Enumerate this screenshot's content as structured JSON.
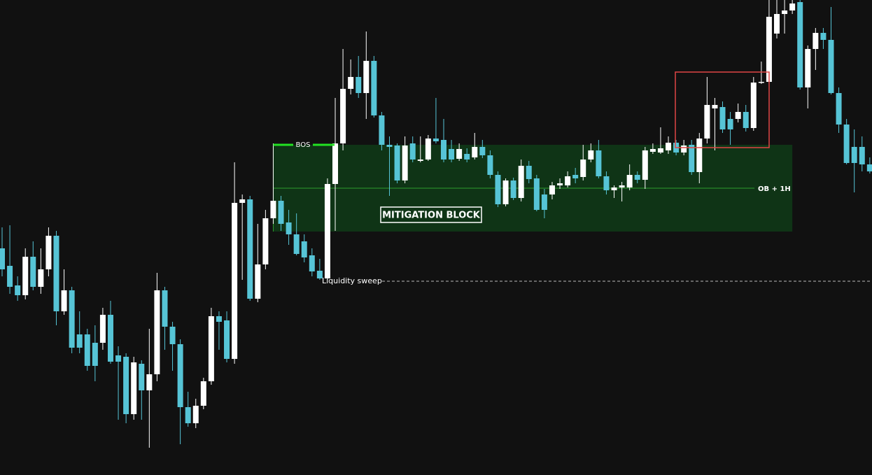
{
  "chart_data": {
    "type": "candlestick",
    "ylim": [
      0,
      680
    ],
    "up_color": "#ffffff",
    "down_color": "#56c4d6",
    "open": [
      325,
      300,
      272,
      258,
      313,
      270,
      295,
      343,
      235,
      265,
      202,
      202,
      190,
      190,
      230,
      172,
      170,
      88,
      160,
      122,
      145,
      265,
      213,
      188,
      98,
      75,
      100,
      135,
      228,
      222,
      167,
      390,
      395,
      253,
      302,
      368,
      393,
      362,
      345,
      335,
      315,
      293,
      282,
      417,
      475,
      553,
      570,
      547,
      593,
      515,
      473,
      472,
      422,
      475,
      450,
      452,
      482,
      480,
      467,
      453,
      460,
      455,
      470,
      458,
      430,
      388,
      422,
      397,
      443,
      425,
      402,
      402,
      415,
      415,
      430,
      427,
      452,
      465,
      428,
      408,
      412,
      412,
      430,
      423,
      463,
      462,
      465,
      476,
      462,
      473,
      434,
      482,
      525,
      527,
      510,
      510,
      520,
      497,
      562,
      563,
      632,
      660,
      665,
      677,
      555,
      610,
      633,
      623,
      547,
      502,
      470,
      470,
      445
    ],
    "high": [
      355,
      358,
      285,
      325,
      335,
      325,
      355,
      350,
      295,
      270,
      235,
      210,
      215,
      240,
      250,
      185,
      175,
      170,
      165,
      210,
      290,
      270,
      220,
      195,
      120,
      110,
      140,
      240,
      235,
      235,
      448,
      402,
      400,
      360,
      380,
      475,
      400,
      380,
      375,
      345,
      325,
      310,
      425,
      540,
      610,
      595,
      600,
      635,
      600,
      520,
      485,
      475,
      485,
      485,
      485,
      487,
      540,
      510,
      480,
      475,
      468,
      490,
      480,
      465,
      435,
      425,
      426,
      452,
      450,
      430,
      410,
      420,
      425,
      435,
      440,
      473,
      475,
      480,
      435,
      415,
      420,
      445,
      435,
      470,
      475,
      498,
      485,
      480,
      480,
      480,
      490,
      570,
      540,
      535,
      520,
      532,
      530,
      570,
      592,
      680,
      680,
      680,
      680,
      680,
      615,
      640,
      640,
      670,
      555,
      510,
      495,
      485,
      455
    ],
    "low": [
      285,
      260,
      250,
      252,
      265,
      260,
      285,
      215,
      230,
      175,
      175,
      150,
      135,
      180,
      160,
      80,
      75,
      80,
      80,
      40,
      135,
      180,
      150,
      45,
      70,
      68,
      95,
      130,
      180,
      162,
      160,
      280,
      250,
      248,
      295,
      360,
      350,
      330,
      315,
      305,
      285,
      280,
      280,
      350,
      465,
      545,
      540,
      510,
      512,
      465,
      400,
      418,
      418,
      448,
      448,
      450,
      475,
      448,
      448,
      450,
      448,
      452,
      454,
      425,
      384,
      385,
      394,
      392,
      418,
      378,
      368,
      395,
      410,
      412,
      418,
      422,
      448,
      425,
      402,
      397,
      392,
      408,
      418,
      410,
      460,
      460,
      460,
      458,
      458,
      430,
      418,
      475,
      465,
      490,
      473,
      505,
      492,
      493,
      560,
      560,
      625,
      632,
      660,
      552,
      525,
      580,
      610,
      545,
      490,
      445,
      405,
      435,
      432
    ],
    "close": [
      295,
      270,
      258,
      313,
      270,
      295,
      343,
      235,
      265,
      183,
      183,
      157,
      157,
      230,
      163,
      163,
      88,
      162,
      122,
      145,
      265,
      213,
      188,
      98,
      75,
      100,
      135,
      228,
      220,
      167,
      390,
      395,
      253,
      302,
      368,
      393,
      360,
      345,
      317,
      312,
      292,
      282,
      417,
      475,
      553,
      570,
      547,
      593,
      515,
      473,
      470,
      422,
      472,
      452,
      452,
      482,
      478,
      452,
      452,
      467,
      452,
      470,
      458,
      430,
      388,
      422,
      397,
      443,
      424,
      380,
      380,
      415,
      418,
      428,
      425,
      452,
      465,
      428,
      408,
      412,
      415,
      430,
      423,
      465,
      467,
      468,
      476,
      462,
      472,
      434,
      482,
      530,
      530,
      495,
      495,
      520,
      497,
      562,
      563,
      656,
      660,
      665,
      675,
      555,
      610,
      633,
      623,
      547,
      502,
      447,
      447,
      445,
      435
    ],
    "zone": {
      "label": "MITIGATION BLOCK",
      "top": 473,
      "bottom": 349,
      "color": "#0f3416"
    },
    "levels": [
      {
        "label": "BOS",
        "value": 473,
        "color": "#22e222"
      },
      {
        "label": "OB + 1H",
        "value": 411,
        "color": "#2e9e2e"
      },
      {
        "label": "Liquidity sweep",
        "value": 278,
        "color": "#bbbbbb"
      }
    ],
    "box": {
      "top": 577,
      "bottom": 469,
      "color": "#e04545"
    }
  }
}
